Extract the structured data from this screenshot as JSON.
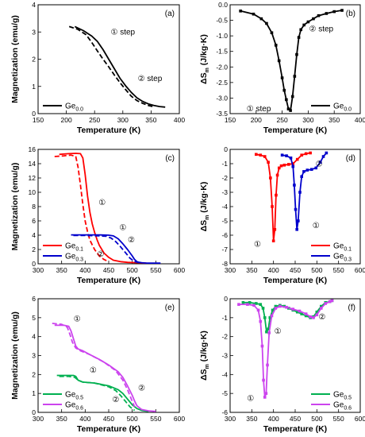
{
  "chart_data": [
    {
      "id": "a",
      "panel_label": "(a)",
      "type": "line",
      "xlabel": "Temperature (K)",
      "ylabel": "Magnetization (emu/g)",
      "xlim": [
        150,
        400
      ],
      "ylim": [
        0,
        4
      ],
      "xticks": [
        150,
        200,
        250,
        300,
        350,
        400
      ],
      "yticks": [
        0,
        1,
        2,
        3,
        4
      ],
      "markers": false,
      "legend": "bottom-left",
      "series": [
        {
          "name": "Ge0.0",
          "color": "#000000",
          "style": "solid",
          "in_legend": true,
          "x": [
            215,
            230,
            245,
            255,
            265,
            275,
            285,
            295,
            305,
            315,
            325,
            335,
            345,
            355,
            365,
            375
          ],
          "y": [
            3.2,
            3.05,
            2.85,
            2.65,
            2.35,
            2.0,
            1.65,
            1.3,
            1.02,
            0.78,
            0.58,
            0.45,
            0.36,
            0.3,
            0.26,
            0.24
          ]
        },
        {
          "name": "",
          "color": "#000000",
          "style": "dashed",
          "in_legend": false,
          "x": [
            205,
            220,
            235,
            245,
            255,
            265,
            275,
            285,
            295,
            305,
            315,
            325,
            335,
            345,
            355
          ],
          "y": [
            3.2,
            3.1,
            2.9,
            2.62,
            2.3,
            2.0,
            1.72,
            1.42,
            1.14,
            0.88,
            0.64,
            0.48,
            0.38,
            0.3,
            0.25
          ]
        }
      ],
      "legend_items": [
        {
          "text": "Ge",
          "sub": "0.0",
          "color": "#000000"
        }
      ],
      "annotations": [
        {
          "text": "① step",
          "x": 300,
          "y": 2.9
        },
        {
          "text": "② step",
          "x": 348,
          "y": 1.2
        }
      ]
    },
    {
      "id": "b",
      "panel_label": "(b)",
      "type": "line",
      "xlabel": "Temperature (K)",
      "ylabel": "ΔSm (J/kg·K)",
      "xlim": [
        150,
        400
      ],
      "ylim": [
        -3.5,
        0
      ],
      "xticks": [
        150,
        200,
        250,
        300,
        350,
        400
      ],
      "yticks": [
        0,
        -0.5,
        -1.0,
        -1.5,
        -2.0,
        -2.5,
        -3.0,
        -3.5
      ],
      "ytick_labels": [
        "0.0",
        "-0.5",
        "-1.0",
        "-1.5",
        "-2.0",
        "-2.5",
        "-3.0",
        "-3.5"
      ],
      "markers": true,
      "legend": "bottom-right",
      "series": [
        {
          "name": "Ge0.0",
          "color": "#000000",
          "style": "solid",
          "in_legend": true,
          "x": [
            170,
            195,
            210,
            220,
            230,
            238,
            244,
            250,
            254,
            258,
            262,
            266,
            270,
            274,
            278,
            282,
            286,
            292,
            300,
            310,
            320,
            335,
            350,
            365
          ],
          "y": [
            -0.2,
            -0.3,
            -0.45,
            -0.6,
            -0.9,
            -1.3,
            -1.8,
            -2.35,
            -2.75,
            -3.05,
            -3.35,
            -3.4,
            -2.95,
            -2.3,
            -1.6,
            -1.05,
            -0.8,
            -0.65,
            -0.55,
            -0.45,
            -0.35,
            -0.28,
            -0.22,
            -0.18
          ]
        }
      ],
      "legend_items": [
        {
          "text": "Ge",
          "sub": "0.0",
          "color": "#000000"
        }
      ],
      "annotations": [
        {
          "text": "② step",
          "x": 325,
          "y": -0.85
        },
        {
          "text": "① step",
          "x": 205,
          "y": -3.42
        }
      ]
    },
    {
      "id": "c",
      "panel_label": "(c)",
      "type": "line",
      "xlabel": "Temperature (K)",
      "ylabel": "Magnetization (emu/g)",
      "xlim": [
        300,
        600
      ],
      "ylim": [
        0,
        16
      ],
      "xticks": [
        300,
        350,
        400,
        450,
        500,
        550,
        600
      ],
      "yticks": [
        0,
        2,
        4,
        6,
        8,
        10,
        12,
        14,
        16
      ],
      "markers": false,
      "legend": "bottom-left",
      "series": [
        {
          "name": "Ge0.1",
          "color": "#ff0000",
          "style": "solid",
          "in_legend": true,
          "x": [
            345,
            365,
            380,
            390,
            395,
            400,
            405,
            410,
            415,
            420,
            425,
            430,
            440,
            450,
            460,
            475,
            490,
            510,
            530
          ],
          "y": [
            15.3,
            15.4,
            15.45,
            15.4,
            14.8,
            12.5,
            9.5,
            7.2,
            5.6,
            4.4,
            3.4,
            2.6,
            1.5,
            0.9,
            0.5,
            0.3,
            0.2,
            0.15,
            0.1
          ]
        },
        {
          "name": "",
          "color": "#ff0000",
          "style": "dashed",
          "in_legend": false,
          "x": [
            335,
            355,
            370,
            380,
            385,
            390,
            395,
            400,
            405,
            410,
            420,
            430,
            440,
            450
          ],
          "y": [
            15.0,
            15.1,
            15.2,
            15.0,
            13.5,
            11.0,
            8.3,
            6.0,
            4.5,
            3.3,
            2.0,
            1.1,
            0.6,
            0.3
          ]
        },
        {
          "name": "Ge0.3",
          "color": "#0000cc",
          "style": "solid",
          "in_legend": true,
          "x": [
            370,
            400,
            430,
            450,
            460,
            470,
            480,
            490,
            500,
            505,
            510,
            515,
            520,
            530,
            545,
            560
          ],
          "y": [
            4.05,
            4.05,
            4.05,
            4.0,
            3.9,
            3.5,
            2.8,
            2.0,
            1.1,
            0.6,
            0.3,
            0.2,
            0.15,
            0.1,
            0.1,
            0.1
          ]
        },
        {
          "name": "",
          "color": "#0000cc",
          "style": "dashed",
          "in_legend": false,
          "x": [
            375,
            400,
            430,
            445,
            455,
            465,
            475,
            485,
            495,
            505,
            515
          ],
          "y": [
            3.95,
            3.95,
            3.9,
            3.85,
            3.6,
            3.1,
            2.4,
            1.6,
            0.8,
            0.3,
            0.15
          ]
        }
      ],
      "legend_items": [
        {
          "text": "Ge",
          "sub": "0.1",
          "color": "#ff0000"
        },
        {
          "text": "Ge",
          "sub": "0.3",
          "color": "#0000cc"
        }
      ],
      "annotations": [
        {
          "text": "①",
          "x": 436,
          "y": 8.2
        },
        {
          "text": "①",
          "x": 480,
          "y": 4.7
        },
        {
          "text": "②",
          "x": 498,
          "y": 3.0
        },
        {
          "text": "②",
          "x": 433,
          "y": 1.0
        }
      ]
    },
    {
      "id": "d",
      "panel_label": "(d)",
      "type": "line",
      "xlabel": "Temperature (K)",
      "ylabel": "ΔSm (J/kg·K)",
      "xlim": [
        300,
        600
      ],
      "ylim": [
        -8,
        0
      ],
      "xticks": [
        300,
        350,
        400,
        450,
        500,
        550,
        600
      ],
      "yticks": [
        0,
        -1,
        -2,
        -3,
        -4,
        -5,
        -6,
        -7,
        -8
      ],
      "markers": true,
      "legend": "bottom-right",
      "series": [
        {
          "name": "Ge0.1",
          "color": "#ff0000",
          "style": "solid",
          "in_legend": true,
          "x": [
            360,
            370,
            380,
            388,
            393,
            397,
            400,
            403,
            406,
            409,
            413,
            418,
            425,
            435,
            445,
            455,
            465,
            475,
            485
          ],
          "y": [
            -0.35,
            -0.4,
            -0.5,
            -0.9,
            -2.0,
            -4.0,
            -6.4,
            -5.6,
            -3.2,
            -1.8,
            -1.3,
            -1.15,
            -1.1,
            -1.05,
            -1.0,
            -0.7,
            -0.4,
            -0.3,
            -0.25
          ]
        },
        {
          "name": "Ge0.3",
          "color": "#0000cc",
          "style": "solid",
          "in_legend": true,
          "x": [
            420,
            430,
            440,
            445,
            448,
            451,
            454,
            457,
            461,
            465,
            470,
            478,
            488,
            498,
            508,
            515,
            522
          ],
          "y": [
            -0.4,
            -0.45,
            -0.6,
            -1.2,
            -2.5,
            -4.2,
            -5.6,
            -5.0,
            -3.0,
            -1.9,
            -1.55,
            -1.45,
            -1.4,
            -1.3,
            -0.9,
            -0.5,
            -0.25
          ]
        }
      ],
      "legend_items": [
        {
          "text": "Ge",
          "sub": "0.1",
          "color": "#ff0000"
        },
        {
          "text": "Ge",
          "sub": "0.3",
          "color": "#0000cc"
        }
      ],
      "annotations": [
        {
          "text": "②",
          "x": 505,
          "y": -1.2
        },
        {
          "text": "①",
          "x": 498,
          "y": -5.5
        },
        {
          "text": "①",
          "x": 363,
          "y": -6.8
        }
      ]
    },
    {
      "id": "e",
      "panel_label": "(e)",
      "type": "line",
      "xlabel": "Temperature (K)",
      "ylabel": "Magnetization (emu/g)",
      "xlim": [
        300,
        600
      ],
      "ylim": [
        0,
        6
      ],
      "xticks": [
        300,
        350,
        400,
        450,
        500,
        550,
        600
      ],
      "yticks": [
        0,
        1,
        2,
        3,
        4,
        5,
        6
      ],
      "markers": false,
      "legend": "bottom-left",
      "series": [
        {
          "name": "Ge0.5",
          "color": "#00b050",
          "style": "solid",
          "in_legend": true,
          "x": [
            340,
            360,
            375,
            380,
            385,
            395,
            420,
            450,
            470,
            480,
            490,
            500,
            510,
            520,
            535
          ],
          "y": [
            1.95,
            1.95,
            1.95,
            1.9,
            1.7,
            1.6,
            1.55,
            1.4,
            1.2,
            1.0,
            0.7,
            0.4,
            0.2,
            0.1,
            0.05
          ]
        },
        {
          "name": "",
          "color": "#00b050",
          "style": "dashed",
          "in_legend": false,
          "x": [
            345,
            365,
            378,
            385,
            395,
            420,
            450,
            465,
            475,
            485,
            495,
            505
          ],
          "y": [
            1.9,
            1.9,
            1.85,
            1.7,
            1.6,
            1.55,
            1.35,
            1.15,
            0.9,
            0.6,
            0.3,
            0.1
          ]
        },
        {
          "name": "Ge0.6",
          "color": "#cc44ee",
          "style": "solid",
          "in_legend": true,
          "x": [
            335,
            355,
            365,
            370,
            375,
            380,
            385,
            395,
            410,
            430,
            450,
            470,
            480,
            490,
            500,
            505,
            510,
            520,
            535,
            550
          ],
          "y": [
            4.6,
            4.6,
            4.55,
            4.3,
            3.9,
            3.5,
            3.35,
            3.25,
            3.05,
            2.8,
            2.5,
            2.15,
            1.85,
            1.4,
            0.9,
            0.6,
            0.35,
            0.15,
            0.08,
            0.05
          ]
        },
        {
          "name": "",
          "color": "#cc44ee",
          "style": "dashed",
          "in_legend": false,
          "x": [
            330,
            350,
            362,
            368,
            373,
            380,
            390,
            410,
            440,
            465,
            480,
            490,
            498,
            505
          ],
          "y": [
            4.7,
            4.65,
            4.5,
            4.1,
            3.7,
            3.4,
            3.25,
            3.05,
            2.65,
            2.2,
            1.7,
            1.2,
            0.7,
            0.3
          ]
        }
      ],
      "legend_items": [
        {
          "text": "Ge",
          "sub": "0.5",
          "color": "#00b050"
        },
        {
          "text": "Ge",
          "sub": "0.6",
          "color": "#cc44ee"
        }
      ],
      "annotations": [
        {
          "text": "①",
          "x": 383,
          "y": 4.8
        },
        {
          "text": "①",
          "x": 417,
          "y": 2.1
        },
        {
          "text": "②",
          "x": 520,
          "y": 1.15
        },
        {
          "text": "②",
          "x": 465,
          "y": 0.55
        }
      ]
    },
    {
      "id": "f",
      "panel_label": "(f)",
      "type": "line",
      "xlabel": "Temperature (K)",
      "ylabel": "ΔSm (J/kg·K)",
      "xlim": [
        300,
        600
      ],
      "ylim": [
        -6,
        0
      ],
      "xticks": [
        300,
        350,
        400,
        450,
        500,
        550,
        600
      ],
      "yticks": [
        0,
        -1,
        -2,
        -3,
        -4,
        -5,
        -6
      ],
      "markers": true,
      "legend": "bottom-right",
      "series": [
        {
          "name": "Ge0.5",
          "color": "#00b050",
          "style": "solid",
          "in_legend": true,
          "x": [
            330,
            345,
            360,
            370,
            376,
            380,
            384,
            388,
            392,
            398,
            405,
            415,
            425,
            435,
            445,
            455,
            465,
            475,
            485,
            492,
            500,
            510,
            520,
            530,
            535
          ],
          "y": [
            -0.2,
            -0.2,
            -0.25,
            -0.3,
            -0.5,
            -1.0,
            -1.75,
            -1.6,
            -1.0,
            -0.6,
            -0.4,
            -0.35,
            -0.4,
            -0.5,
            -0.6,
            -0.7,
            -0.8,
            -0.9,
            -1.0,
            -0.95,
            -0.7,
            -0.4,
            -0.2,
            -0.15,
            -0.1
          ]
        },
        {
          "name": "Ge0.6",
          "color": "#cc44ee",
          "style": "solid",
          "in_legend": true,
          "x": [
            320,
            340,
            355,
            365,
            370,
            374,
            377,
            380,
            383,
            386,
            390,
            396,
            405,
            415,
            430,
            445,
            460,
            475,
            485,
            492,
            500,
            510,
            520,
            530,
            535
          ],
          "y": [
            -0.3,
            -0.3,
            -0.35,
            -0.6,
            -1.2,
            -2.5,
            -4.3,
            -5.2,
            -5.0,
            -3.5,
            -1.8,
            -0.9,
            -0.5,
            -0.4,
            -0.45,
            -0.55,
            -0.65,
            -0.8,
            -0.95,
            -1.0,
            -0.85,
            -0.5,
            -0.25,
            -0.15,
            -0.1
          ]
        }
      ],
      "legend_items": [
        {
          "text": "Ge",
          "sub": "0.5",
          "color": "#00b050"
        },
        {
          "text": "Ge",
          "sub": "0.6",
          "color": "#cc44ee"
        }
      ],
      "annotations": [
        {
          "text": "②",
          "x": 512,
          "y": -1.1
        },
        {
          "text": "①",
          "x": 410,
          "y": -1.85
        },
        {
          "text": "①",
          "x": 347,
          "y": -5.4
        }
      ]
    }
  ]
}
